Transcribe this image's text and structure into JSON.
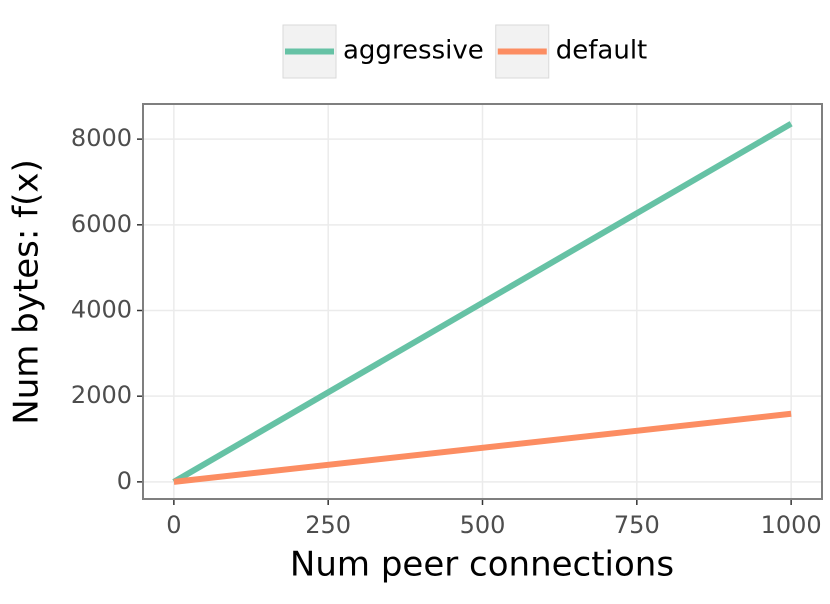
{
  "chart_data": {
    "type": "line",
    "x_label": "Num peer connections",
    "y_label": "Num bytes: f(x)",
    "x": [
      0,
      1000
    ],
    "series": [
      {
        "name": "aggressive",
        "color": "#66c2a5",
        "values": [
          0,
          8360
        ]
      },
      {
        "name": "default",
        "color": "#fc8d62",
        "values": [
          0,
          1590
        ]
      }
    ],
    "xlim": [
      -50,
      1050
    ],
    "ylim": [
      -400,
      8820
    ],
    "xticks": [
      0,
      250,
      500,
      750,
      1000
    ],
    "yticks": [
      0,
      2000,
      4000,
      6000,
      8000
    ],
    "grid": true,
    "legend": "top"
  }
}
